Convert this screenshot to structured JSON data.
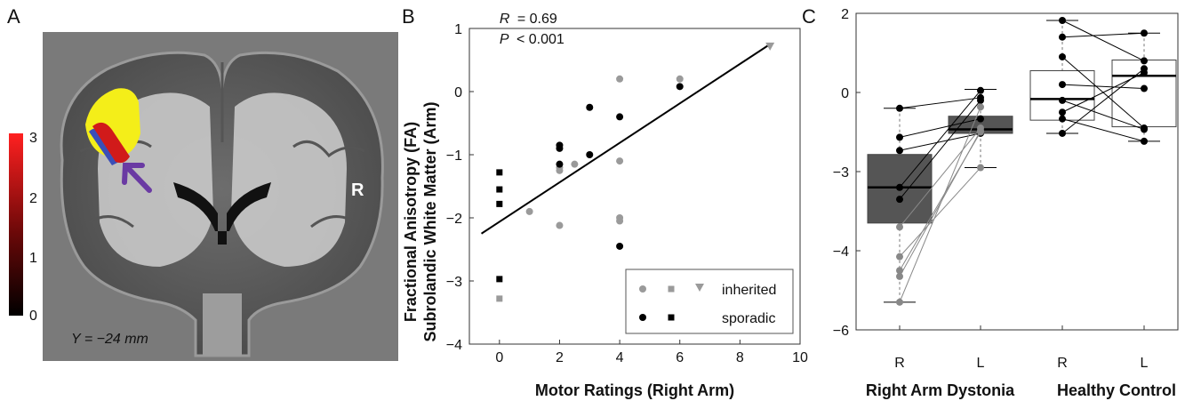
{
  "panels": {
    "a": {
      "letter": "A",
      "colorbar_ticks": [
        "3",
        "2",
        "1",
        "0"
      ],
      "slice_label": "Y = −24 mm",
      "side_label": "R"
    },
    "b": {
      "letter": "B"
    },
    "c": {
      "letter": "C"
    }
  },
  "colors": {
    "inherited": "#9a9a9a",
    "sporadic": "#000000",
    "box_dystonia": "#555555",
    "box_control": "#ffffff",
    "overlay_yellow": "#f4ee19",
    "overlay_red": "#d11a1a",
    "overlay_blue": "#3a4fb8",
    "arrow_purple": "#6a3aa3"
  },
  "chart_data": [
    {
      "type": "scatter",
      "panel": "B",
      "xlabel": "Motor Ratings (Right Arm)",
      "ylabel_line1": "Fractional Anisotropy (FA)",
      "ylabel_line2": "Subrolandic White Matter (Arm)",
      "xlim": [
        -1,
        10
      ],
      "ylim": [
        -4,
        1
      ],
      "xticks": [
        0,
        2,
        4,
        6,
        8,
        10
      ],
      "yticks": [
        -4,
        -3,
        -2,
        -1,
        0,
        1
      ],
      "annotation": {
        "r_label": "R",
        "r_value": "= 0.69",
        "p_label": "P",
        "p_value": "< 0.001"
      },
      "fit_line": {
        "x": [
          -0.6,
          9
        ],
        "y": [
          -2.25,
          0.75
        ]
      },
      "legend": {
        "position": "bottom-right",
        "entries": [
          "inherited",
          "sporadic"
        ]
      },
      "series": [
        {
          "name": "inherited",
          "marker": "circle",
          "x": [
            1,
            2,
            2,
            2,
            2.5,
            4,
            4,
            4,
            4,
            6
          ],
          "y": [
            -1.9,
            -1.2,
            -1.25,
            -2.12,
            -1.15,
            0.2,
            -1.1,
            -2.0,
            -2.05,
            0.2
          ]
        },
        {
          "name": "inherited",
          "marker": "square",
          "x": [
            0
          ],
          "y": [
            -3.28
          ]
        },
        {
          "name": "inherited",
          "marker": "triangle",
          "x": [
            9
          ],
          "y": [
            0.72
          ]
        },
        {
          "name": "sporadic",
          "marker": "circle",
          "x": [
            2,
            2,
            2,
            3,
            3,
            4,
            4,
            6
          ],
          "y": [
            -0.85,
            -0.9,
            -1.15,
            -0.25,
            -1.0,
            -0.4,
            -2.45,
            0.08
          ]
        },
        {
          "name": "sporadic",
          "marker": "square",
          "x": [
            0,
            0,
            0,
            0
          ],
          "y": [
            -1.28,
            -1.55,
            -1.78,
            -2.97
          ]
        }
      ]
    },
    {
      "type": "box",
      "panel": "C",
      "xlabel_groups": [
        "Right Arm Dystonia",
        "Healthy Control"
      ],
      "categories": [
        "R",
        "L",
        "R",
        "L"
      ],
      "ylim": [
        -6,
        2
      ],
      "yticks": [
        2,
        0,
        -3,
        -4,
        -6
      ],
      "boxes": [
        {
          "group": "Right Arm Dystonia",
          "side": "R",
          "min": -5.3,
          "q1": -3.65,
          "median": -3.2,
          "q3": -2.35,
          "max": -0.6,
          "color": "#555555"
        },
        {
          "group": "Right Arm Dystonia",
          "side": "L",
          "min": -2.85,
          "q1": -1.55,
          "median": -1.4,
          "q3": -0.9,
          "max": 0.08,
          "color": "#555555"
        },
        {
          "group": "Healthy Control",
          "side": "R",
          "min": -1.55,
          "q1": -1.05,
          "median": -0.25,
          "q3": 0.55,
          "max": 1.82,
          "color": "#ffffff"
        },
        {
          "group": "Healthy Control",
          "side": "L",
          "min": -1.85,
          "q1": -1.3,
          "median": 0.42,
          "q3": 0.82,
          "max": 1.5,
          "color": "#ffffff"
        }
      ],
      "paired_lines": [
        {
          "group": "Right Arm Dystonia",
          "pairs": [
            [
              -0.6,
              -0.2
            ],
            [
              -1.7,
              -1.0
            ],
            [
              -2.2,
              -1.55
            ],
            [
              -3.2,
              0.05
            ],
            [
              -3.35,
              -0.3
            ],
            [
              -3.7,
              -1.35
            ],
            [
              -4.15,
              -2.85
            ],
            [
              -4.5,
              -1.5
            ],
            [
              -4.65,
              -1.45
            ],
            [
              -5.3,
              -0.55
            ]
          ]
        },
        {
          "group": "Healthy Control",
          "pairs": [
            [
              1.82,
              0.8
            ],
            [
              1.4,
              1.5
            ],
            [
              0.9,
              -1.35
            ],
            [
              0.2,
              0.1
            ],
            [
              -0.3,
              -1.4
            ],
            [
              -0.75,
              0.5
            ],
            [
              -1.0,
              -1.85
            ],
            [
              -1.55,
              0.6
            ]
          ]
        }
      ]
    }
  ]
}
